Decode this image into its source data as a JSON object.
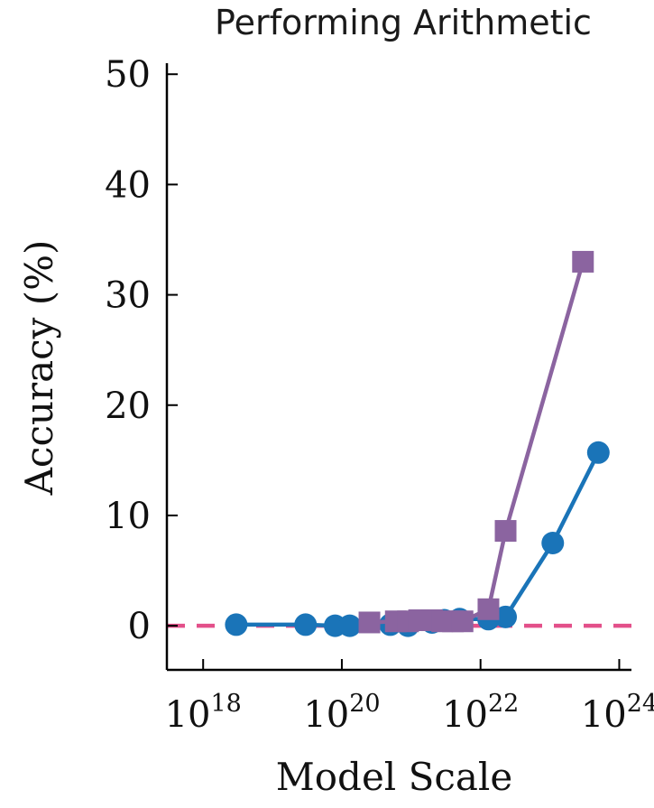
{
  "chart_data": {
    "type": "line",
    "title": "Performing Arithmetic",
    "xlabel": "Model Scale",
    "ylabel": "Accuracy (%)",
    "x_scale": "log",
    "xlim": [
      3e+17,
      1.5e+24
    ],
    "ylim": [
      -4,
      51
    ],
    "grid": false,
    "x_ticks": [
      {
        "value": 1e+18,
        "base": "10",
        "exp": "18"
      },
      {
        "value": 1e+20,
        "base": "10",
        "exp": "20"
      },
      {
        "value": 1e+22,
        "base": "10",
        "exp": "22"
      },
      {
        "value": 1e+24,
        "base": "10",
        "exp": "24"
      }
    ],
    "y_ticks": [
      {
        "value": 0,
        "label": "0"
      },
      {
        "value": 10,
        "label": "10"
      },
      {
        "value": 20,
        "label": "20"
      },
      {
        "value": 30,
        "label": "30"
      },
      {
        "value": 40,
        "label": "40"
      },
      {
        "value": 50,
        "label": "50"
      }
    ],
    "series": [
      {
        "color": "#1a74b8",
        "marker": "circle",
        "x": [
          3e+18,
          3e+19,
          8e+19,
          1.3e+20,
          5e+20,
          9e+20,
          2e+21,
          3e+21,
          5e+21,
          1.3e+22,
          2.3e+22,
          1.1e+23,
          5e+23
        ],
        "y": [
          0.1,
          0.1,
          0,
          0,
          0.1,
          0,
          0.3,
          0.5,
          0.6,
          0.6,
          0.8,
          7.5,
          15.7
        ]
      },
      {
        "color": "#8b64a0",
        "marker": "square",
        "x": [
          2.5e+20,
          6e+20,
          9e+20,
          1.3e+21,
          2e+21,
          2.8e+21,
          4e+21,
          5.5e+21,
          1.3e+22,
          2.3e+22,
          3e+23
        ],
        "y": [
          0.3,
          0.4,
          0.4,
          0.5,
          0.5,
          0.4,
          0.4,
          0.4,
          1.5,
          8.6,
          33
        ]
      }
    ],
    "baseline": {
      "y": 0,
      "color": "#e3508a",
      "style": "dashed"
    }
  }
}
